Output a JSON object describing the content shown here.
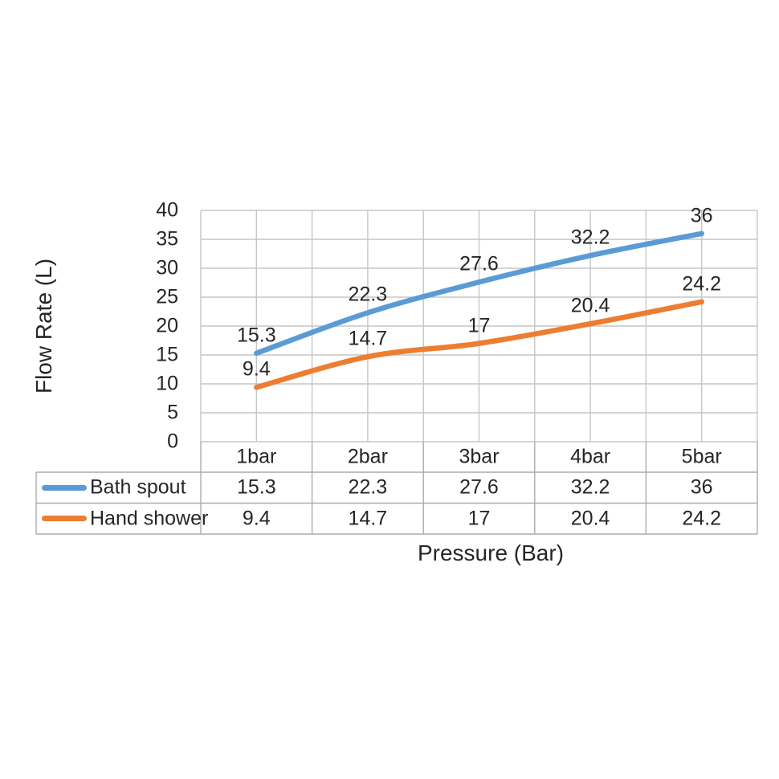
{
  "chart_data": {
    "type": "line",
    "title": "",
    "xlabel": "Pressure (Bar)",
    "ylabel": "Flow Rate (L)",
    "categories": [
      "1bar",
      "2bar",
      "3bar",
      "4bar",
      "5bar"
    ],
    "series": [
      {
        "name": "Bath spout",
        "color": "#5B9BD5",
        "values": [
          15.3,
          22.3,
          27.6,
          32.2,
          36
        ],
        "labels": [
          "15.3",
          "22.3",
          "27.6",
          "32.2",
          "36"
        ]
      },
      {
        "name": "Hand shower",
        "color": "#ED7D31",
        "values": [
          9.4,
          14.7,
          17,
          20.4,
          24.2
        ],
        "labels": [
          "9.4",
          "14.7",
          "17",
          "20.4",
          "24.2"
        ]
      }
    ],
    "y_axis": {
      "min": 0,
      "max": 40,
      "step": 5,
      "tick_labels": [
        "0",
        "5",
        "10",
        "15",
        "20",
        "25",
        "30",
        "35",
        "40"
      ]
    },
    "x_axis": {
      "tick_labels": [
        "1bar",
        "2bar",
        "3bar",
        "4bar",
        "5bar"
      ]
    },
    "grid": "on",
    "smooth_lines": true,
    "data_labels_shown": true,
    "legend_position": "data-table-left",
    "data_table": {
      "shown": true,
      "legend_keys": true,
      "header": [
        "1bar",
        "2bar",
        "3bar",
        "4bar",
        "5bar"
      ],
      "rows": [
        {
          "name": "Bath spout",
          "swatch_color": "#5B9BD5",
          "values": [
            "15.3",
            "22.3",
            "27.6",
            "32.2",
            "36"
          ]
        },
        {
          "name": "Hand shower",
          "swatch_color": "#ED7D31",
          "values": [
            "9.4",
            "14.7",
            "17",
            "20.4",
            "24.2"
          ]
        }
      ]
    },
    "colors": {
      "text": "#262626",
      "gridline": "#C6C6C6",
      "table_border": "#ACACAC",
      "background": "#FFFFFF"
    }
  }
}
